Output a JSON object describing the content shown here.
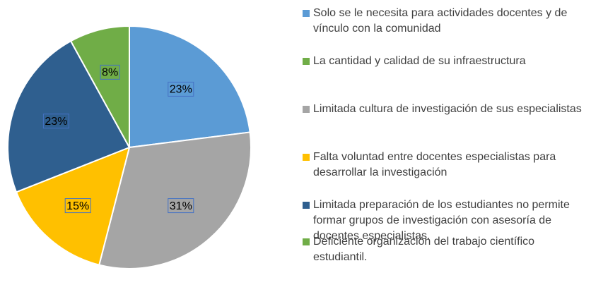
{
  "chart_data": {
    "type": "pie",
    "categories": [
      "Solo se le necesita para actividades docentes y de vínculo con la comunidad",
      "La cantidad y calidad de su infraestructura",
      "Limitada cultura de investigación de sus especialistas",
      "Falta voluntad entre docentes especialistas para desarrollar la investigación",
      "Limitada preparación de los estudiantes no permite formar grupos de investigación con asesoría de docentes especialistas.",
      "Deficiente organización del trabajo científico estudiantil."
    ],
    "values": [
      23,
      0,
      31,
      15,
      23,
      8
    ],
    "value_labels": [
      "23%",
      null,
      "31%",
      "15%",
      "23%",
      "8%"
    ],
    "colors": [
      "#5b9bd5",
      "#70ad47",
      "#a5a5a5",
      "#ffc000",
      "#2f5f8f",
      "#70ad47"
    ]
  }
}
